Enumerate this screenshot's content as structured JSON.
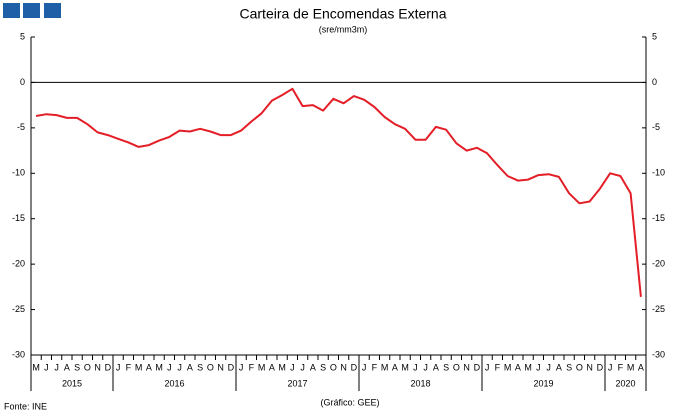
{
  "chart_data": {
    "type": "line",
    "title": "Carteira de Encomendas Externa",
    "subtitle": "(sre/mm3m)",
    "source": "Fonte: INE",
    "credit": "(Gráfico: GEE)",
    "categories": [
      "M",
      "J",
      "J",
      "A",
      "S",
      "O",
      "N",
      "D",
      "J",
      "F",
      "M",
      "A",
      "M",
      "J",
      "J",
      "A",
      "S",
      "O",
      "N",
      "D",
      "J",
      "F",
      "M",
      "A",
      "M",
      "J",
      "J",
      "A",
      "S",
      "O",
      "N",
      "D",
      "J",
      "F",
      "M",
      "A",
      "M",
      "J",
      "J",
      "A",
      "S",
      "O",
      "N",
      "D",
      "J",
      "F",
      "M",
      "A",
      "M",
      "J",
      "J",
      "A",
      "S",
      "O",
      "N",
      "D",
      "J",
      "F",
      "M",
      "A"
    ],
    "year_labels": [
      "2015",
      "2016",
      "2017",
      "2018",
      "2019",
      "2020"
    ],
    "series": [
      {
        "color": "#e41e26",
        "values": [
          -3.7,
          -3.5,
          -3.6,
          -3.9,
          -3.9,
          -4.6,
          -5.5,
          -5.8,
          -6.2,
          -6.6,
          -7.1,
          -6.9,
          -6.4,
          -6.0,
          -5.3,
          -5.4,
          -5.1,
          -5.4,
          -5.8,
          -5.8,
          -5.3,
          -4.3,
          -3.4,
          -2.0,
          -1.4,
          -0.7,
          -2.6,
          -2.5,
          -3.1,
          -1.8,
          -2.3,
          -1.5,
          -1.9,
          -2.7,
          -3.8,
          -4.6,
          -5.1,
          -6.3,
          -6.3,
          -4.9,
          -5.2,
          -6.7,
          -7.5,
          -7.2,
          -7.8,
          -9.1,
          -10.3,
          -10.8,
          -10.7,
          -10.2,
          -10.1,
          -10.4,
          -12.2,
          -13.3,
          -13.1,
          -11.7,
          -10.0,
          -10.3,
          -12.2,
          -23.6
        ]
      }
    ],
    "ylim": [
      -30,
      5
    ],
    "yticks": [
      -30,
      -25,
      -20,
      -15,
      -10,
      -5,
      0,
      5
    ],
    "zero_line": true
  }
}
